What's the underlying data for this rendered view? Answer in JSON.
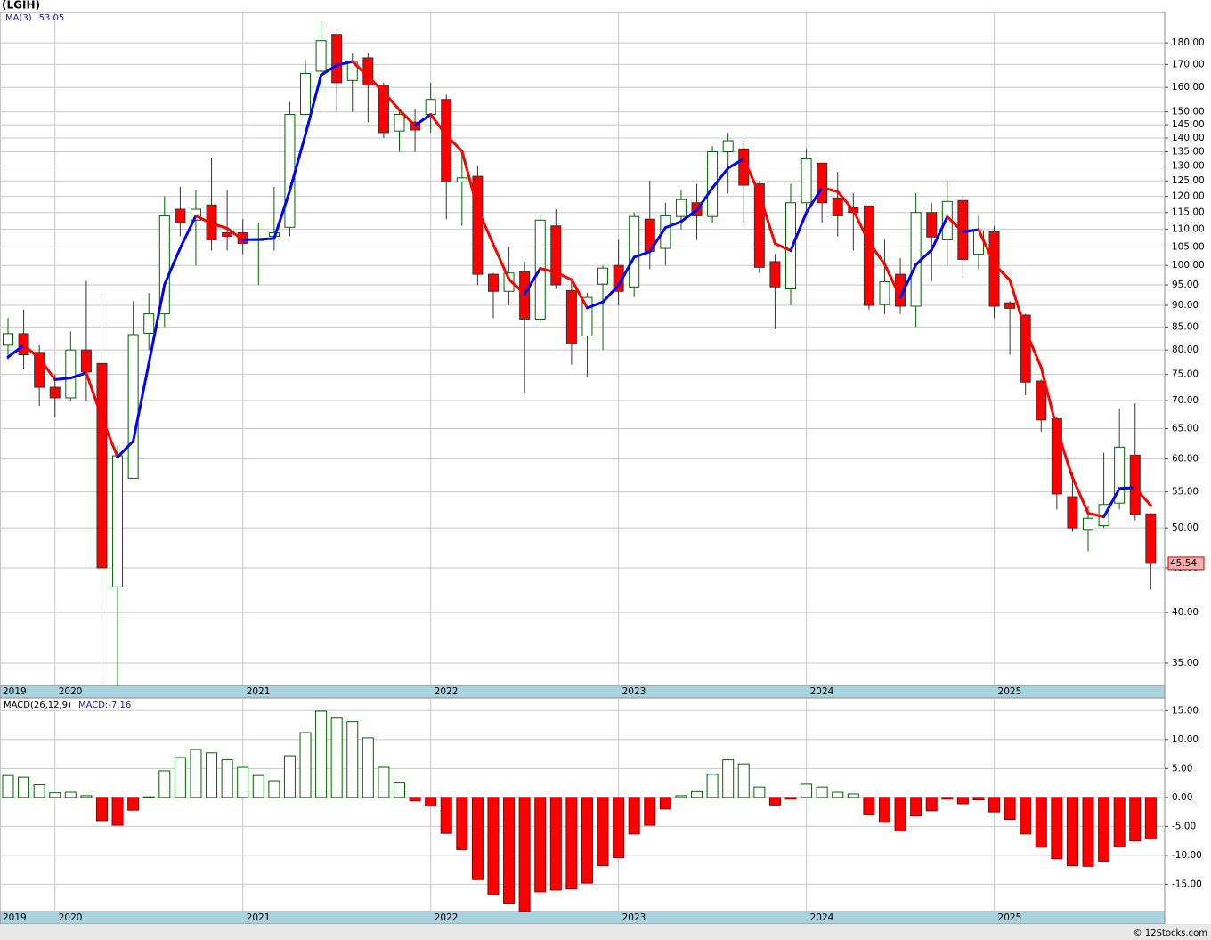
{
  "chart_data": [
    {
      "type": "candlestick",
      "title": "(LGIH)",
      "categories": [
        "2019",
        null,
        null,
        "2020",
        null,
        null,
        null,
        null,
        null,
        null,
        null,
        null,
        null,
        null,
        null,
        "2021",
        null,
        null,
        null,
        null,
        null,
        null,
        null,
        null,
        null,
        null,
        null,
        "2022",
        null,
        null,
        null,
        null,
        null,
        null,
        null,
        null,
        null,
        null,
        null,
        "2023",
        null,
        null,
        null,
        null,
        null,
        null,
        null,
        null,
        null,
        null,
        null,
        "2024",
        null,
        null,
        null,
        null,
        null,
        null,
        null,
        null,
        null,
        null,
        null,
        "2025",
        null,
        null,
        null,
        null,
        null,
        null,
        null,
        null,
        null,
        null
      ],
      "open": [
        81,
        83.5,
        79.5,
        72.5,
        70.5,
        80,
        77.2,
        42.8,
        57,
        83.6,
        88,
        116,
        112.7,
        117.3,
        109,
        109,
        106.8,
        108,
        110.6,
        149,
        167,
        184,
        163,
        173,
        161,
        142.6,
        146,
        149,
        155,
        124.7,
        126.5,
        97.7,
        93.4,
        98.4,
        86.8,
        111,
        93.6,
        83,
        95.2,
        100,
        94.5,
        113,
        104.6,
        113.8,
        118,
        113.8,
        135,
        136,
        124,
        101,
        94,
        118,
        131,
        119.5,
        116.5,
        117,
        90.2,
        97.7,
        89.8,
        115,
        107,
        118.7,
        103,
        109.3,
        90.6,
        87.7,
        73.7,
        66.7,
        54.3,
        49.8,
        50.3,
        53.4,
        60.6,
        51.9
      ],
      "high": [
        87,
        89,
        81,
        75,
        84,
        96,
        92,
        62,
        91,
        93,
        120,
        123,
        122,
        133,
        122,
        113,
        112,
        123,
        154,
        172,
        190,
        185,
        175,
        175,
        162,
        150,
        151,
        162,
        157,
        135,
        130,
        98,
        105,
        101,
        114,
        116,
        96,
        93,
        100,
        107,
        115,
        125,
        118,
        122,
        124,
        137,
        142,
        139,
        125,
        103,
        124,
        136,
        131,
        128,
        121,
        117,
        107,
        102,
        121,
        118,
        125,
        120,
        114,
        111,
        91,
        88,
        74,
        67,
        58,
        53,
        61,
        68.5,
        69.5,
        52
      ],
      "low": [
        78,
        76,
        69,
        67,
        70,
        70,
        33.4,
        32.9,
        57,
        80,
        85,
        108,
        100,
        104,
        104,
        103,
        95,
        104,
        108,
        149,
        160,
        150,
        150,
        146,
        140,
        135,
        135,
        142,
        113,
        111,
        95,
        87,
        90,
        71.5,
        86,
        94,
        77,
        74.5,
        80,
        90,
        92,
        99,
        100,
        110,
        107,
        112,
        121,
        112,
        98,
        84.5,
        90,
        114,
        112,
        108,
        104,
        89,
        88,
        88,
        85,
        96,
        100,
        97,
        99,
        87,
        79,
        71,
        64.5,
        52.5,
        49.5,
        47,
        50,
        52.5,
        51,
        42.5
      ],
      "close": [
        83.5,
        79,
        72.5,
        70.5,
        80,
        75.5,
        45,
        60.5,
        83.3,
        88,
        114,
        112,
        116,
        107,
        108,
        106,
        107.3,
        109,
        149,
        166,
        181,
        162,
        171,
        161,
        142,
        149,
        143,
        155,
        124.7,
        126,
        97.7,
        93.4,
        98,
        86.8,
        112.7,
        95,
        81.3,
        91.9,
        99.3,
        93.4,
        113.8,
        103.8,
        114,
        119,
        114,
        135,
        139,
        123.6,
        99.5,
        94.5,
        118,
        132.5,
        118,
        114,
        115,
        90,
        95.8,
        89.8,
        115,
        107.8,
        118.4,
        101.6,
        109.6,
        89.8,
        89.3,
        73.5,
        66.5,
        54.7,
        50,
        51.3,
        53.2,
        61.9,
        51.8,
        45.54
      ],
      "up_color": "#006400",
      "down_color": "#ff0000",
      "series": [
        {
          "name": "MA(3)",
          "up_color": "#0000ff",
          "down_color": "#ff0000",
          "values": [
            78.5,
            81,
            78.3,
            74,
            74.3,
            75.3,
            66.8,
            60.3,
            62.9,
            77.3,
            95.1,
            104.7,
            114,
            111.7,
            110.3,
            107,
            107.1,
            107.4,
            121.8,
            141.3,
            165.3,
            169.7,
            171.3,
            164.7,
            158,
            150.7,
            144.7,
            149,
            140.9,
            135.2,
            116.1,
            105.7,
            96.4,
            92.7,
            99.2,
            98.2,
            96.3,
            89.4,
            90.8,
            94.9,
            102.2,
            103.7,
            110.5,
            112.3,
            115.7,
            122.7,
            129.3,
            132.5,
            120.7,
            105.9,
            104,
            115,
            122.8,
            121.5,
            115.7,
            106.3,
            100.3,
            91.9,
            100.2,
            104.2,
            113.7,
            109.3,
            109.9,
            100.3,
            96.2,
            84.2,
            76.4,
            64.9,
            57.1,
            52,
            51.5,
            55.5,
            55.6,
            53.05
          ]
        }
      ],
      "log_scale": true,
      "grid": true,
      "ylim": [
        33,
        195
      ],
      "yticks": [
        {
          "value": 35,
          "label": "35.00"
        },
        {
          "value": 40,
          "label": "40.00"
        },
        {
          "value": 45,
          "label": "45.00"
        },
        {
          "value": 50,
          "label": "50.00"
        },
        {
          "value": 55,
          "label": "55.00"
        },
        {
          "value": 60,
          "label": "60.00"
        },
        {
          "value": 65,
          "label": "65.00"
        },
        {
          "value": 70,
          "label": "70.00"
        },
        {
          "value": 75,
          "label": "75.00"
        },
        {
          "value": 80,
          "label": "80.00"
        },
        {
          "value": 85,
          "label": "85.00"
        },
        {
          "value": 90,
          "label": "90.00"
        },
        {
          "value": 95,
          "label": "95.00"
        },
        {
          "value": 100,
          "label": "100.00"
        },
        {
          "value": 105,
          "label": "105.00"
        },
        {
          "value": 110,
          "label": "110.00"
        },
        {
          "value": 115,
          "label": "115.00"
        },
        {
          "value": 120,
          "label": "120.00"
        },
        {
          "value": 125,
          "label": "125.00"
        },
        {
          "value": 130,
          "label": "130.00"
        },
        {
          "value": 135,
          "label": "135.00"
        },
        {
          "value": 140,
          "label": "140.00"
        },
        {
          "value": 145,
          "label": "145.00"
        },
        {
          "value": 150,
          "label": "150.00"
        },
        {
          "value": 160,
          "label": "160.00"
        },
        {
          "value": 170,
          "label": "170.00"
        },
        {
          "value": 180,
          "label": "180.00"
        }
      ]
    },
    {
      "type": "bar",
      "title": "MACD(26,12,9)",
      "value_name": "MACD:",
      "categories": [
        "2019",
        null,
        null,
        "2020",
        null,
        null,
        null,
        null,
        null,
        null,
        null,
        null,
        null,
        null,
        null,
        "2021",
        null,
        null,
        null,
        null,
        null,
        null,
        null,
        null,
        null,
        null,
        null,
        "2022",
        null,
        null,
        null,
        null,
        null,
        null,
        null,
        null,
        null,
        null,
        null,
        "2023",
        null,
        null,
        null,
        null,
        null,
        null,
        null,
        null,
        null,
        null,
        null,
        "2024",
        null,
        null,
        null,
        null,
        null,
        null,
        null,
        null,
        null,
        null,
        null,
        "2025",
        null,
        null,
        null,
        null,
        null,
        null,
        null,
        null,
        null,
        null
      ],
      "values": [
        3.8,
        3.5,
        2.2,
        0.8,
        0.9,
        0.3,
        -4,
        -4.8,
        -2.2,
        0.1,
        4.6,
        6.9,
        8.3,
        7.7,
        6.5,
        5.2,
        3.8,
        2.9,
        7.2,
        11.2,
        14.9,
        13.7,
        13.1,
        10.3,
        5.2,
        2.5,
        -0.6,
        -1.5,
        -6.2,
        -9,
        -14.2,
        -16.8,
        -18.3,
        -19.7,
        -16.3,
        -16,
        -15.8,
        -14.8,
        -11.8,
        -10.4,
        -6.3,
        -4.8,
        -2,
        0.3,
        1,
        4,
        6.5,
        5.8,
        1.8,
        -1.3,
        -0.3,
        2.3,
        1.8,
        0.9,
        0.6,
        -3,
        -4.3,
        -5.8,
        -3.2,
        -2.3,
        -0.3,
        -1.1,
        -0.4,
        -2.5,
        -3.8,
        -6.3,
        -8.6,
        -10.6,
        -11.8,
        -11.9,
        -11,
        -8.5,
        -7.5,
        -7.16
      ],
      "pos_color": "#006400",
      "neg_color": "#ff0000",
      "grid": true,
      "ylim": [
        -19.7,
        17.2
      ],
      "yticks": [
        {
          "value": 15,
          "label": "15.00"
        },
        {
          "value": 10,
          "label": "10.00"
        },
        {
          "value": 5,
          "label": "5.00"
        },
        {
          "value": 0,
          "label": "0.00"
        },
        {
          "value": -5,
          "label": "-5.00"
        },
        {
          "value": -10,
          "label": "-10.00"
        },
        {
          "value": -15,
          "label": "-15.00"
        }
      ]
    }
  ],
  "footer": "© 12Stocks.com"
}
